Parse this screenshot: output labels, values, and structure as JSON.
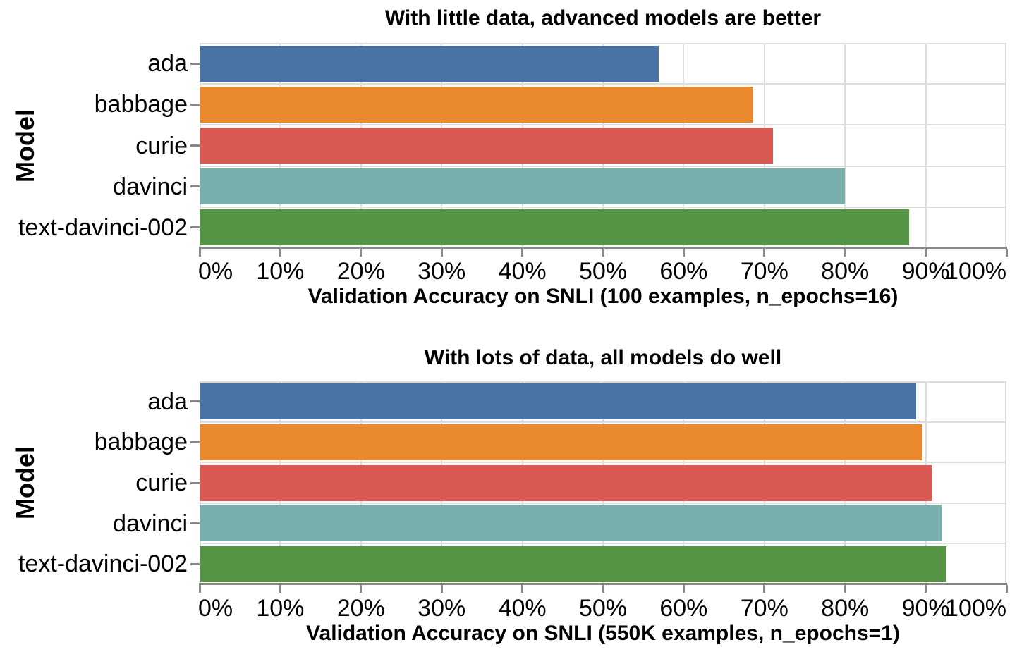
{
  "page": {
    "background": "#ffffff"
  },
  "style_colors": {
    "grid": "#dddddd",
    "view_border": "#dddddd",
    "axis_domain": "#888888",
    "tick": "#888888",
    "text": "#000000"
  },
  "chart_data": [
    {
      "type": "bar",
      "orientation": "horizontal",
      "title": "With little data, advanced models are better",
      "xlabel": "Validation Accuracy on SNLI (100 examples, n_epochs=16)",
      "ylabel": "Model",
      "categories": [
        "ada",
        "babbage",
        "curie",
        "davinci",
        "text-davinci-002"
      ],
      "values": [
        56.9,
        68.6,
        71.1,
        80.0,
        87.9
      ],
      "value_unit": "%",
      "xlim": [
        0,
        100
      ],
      "xticks": [
        0,
        10,
        20,
        30,
        40,
        50,
        60,
        70,
        80,
        90,
        100
      ],
      "xtick_suffix": "%",
      "grid": true,
      "legend": "none",
      "bar_colors": [
        "#4a73a5",
        "#ea882e",
        "#d95a52",
        "#76afab",
        "#579546"
      ]
    },
    {
      "type": "bar",
      "orientation": "horizontal",
      "title": "With lots of data, all models do well",
      "xlabel": "Validation Accuracy on SNLI (550K examples, n_epochs=1)",
      "ylabel": "Model",
      "categories": [
        "ada",
        "babbage",
        "curie",
        "davinci",
        "text-davinci-002"
      ],
      "values": [
        88.8,
        89.6,
        90.8,
        92.0,
        92.6
      ],
      "value_unit": "%",
      "xlim": [
        0,
        100
      ],
      "xticks": [
        0,
        10,
        20,
        30,
        40,
        50,
        60,
        70,
        80,
        90,
        100
      ],
      "xtick_suffix": "%",
      "grid": true,
      "legend": "none",
      "bar_colors": [
        "#4a73a5",
        "#ea882e",
        "#d95a52",
        "#76afab",
        "#579546"
      ]
    }
  ]
}
